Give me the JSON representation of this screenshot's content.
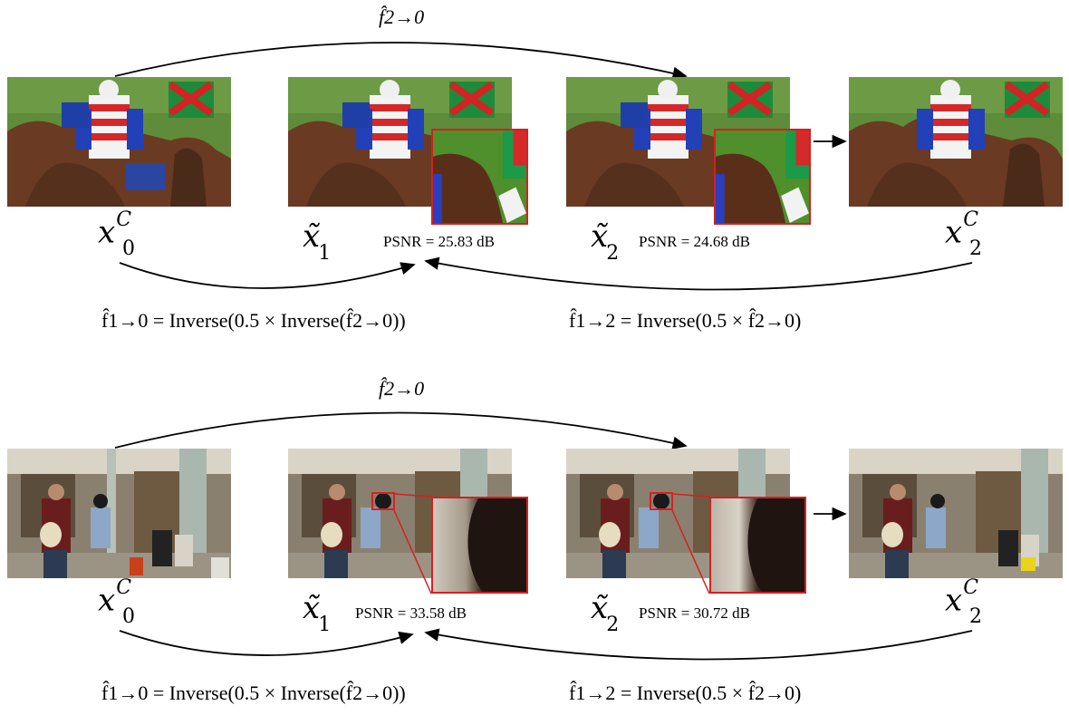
{
  "rows": [
    {
      "top_arrow_label": "f̂2→0",
      "frames": {
        "x0": {
          "var": "x",
          "sup": "C",
          "sub": "0"
        },
        "x1": {
          "var": "x̃",
          "sub": "1",
          "psnr": "PSNR = 25.83 dB"
        },
        "x2": {
          "var": "x̃",
          "sub": "2",
          "psnr": "PSNR = 24.68 dB"
        },
        "xC2": {
          "var": "x",
          "sup": "C",
          "sub": "2"
        }
      },
      "formula_left": "f̂1→0 = Inverse(0.5 × Inverse(f̂2→0))",
      "formula_right": "f̂1→2 = Inverse(0.5 × f̂2→0)"
    },
    {
      "top_arrow_label": "f̂2→0",
      "frames": {
        "x0": {
          "var": "x",
          "sup": "C",
          "sub": "0"
        },
        "x1": {
          "var": "x̃",
          "sub": "1",
          "psnr": "PSNR = 33.58 dB"
        },
        "x2": {
          "var": "x̃",
          "sub": "2",
          "psnr": "PSNR = 30.72 dB"
        },
        "xC2": {
          "var": "x",
          "sup": "C",
          "sub": "2"
        }
      },
      "formula_left": "f̂1→0 = Inverse(0.5 × Inverse(f̂2→0))",
      "formula_right": "f̂1→2 = Inverse(0.5 × f̂2→0)"
    }
  ],
  "colors": {
    "inset_border": "#d62020",
    "arrow": "#000000"
  }
}
